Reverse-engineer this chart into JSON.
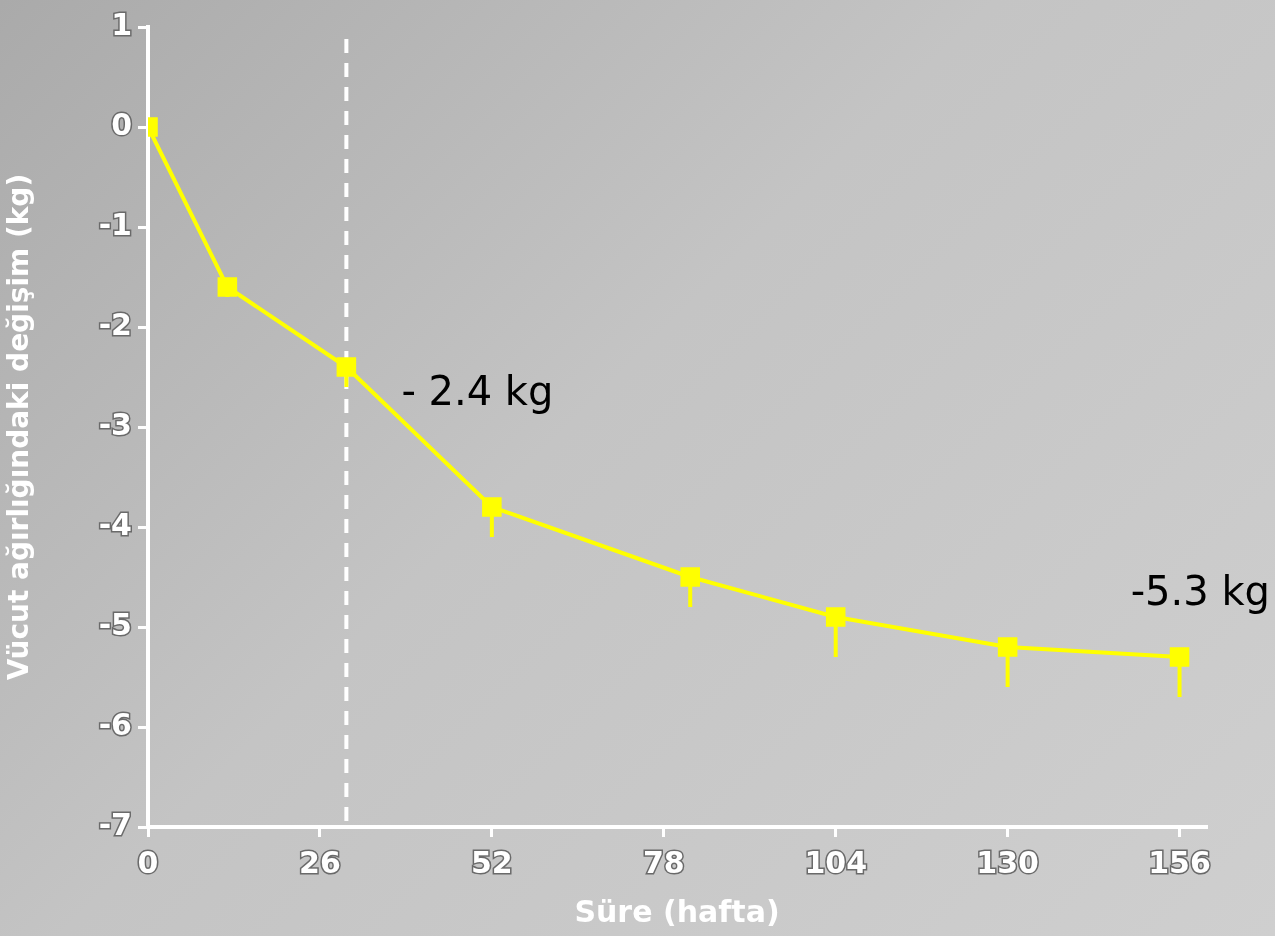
{
  "chart_data": {
    "type": "line",
    "xlabel": "Süre (hafta)",
    "ylabel": "Vücut ağırlığındaki değişim (kg)",
    "x": [
      0,
      12,
      30,
      52,
      82,
      104,
      130,
      156
    ],
    "series": [
      {
        "color": "#ffff00",
        "values": [
          0,
          -1.6,
          -2.4,
          -3.8,
          -4.5,
          -4.9,
          -5.2,
          -5.3
        ],
        "errors": [
          null,
          [
            -1.7,
            -1.6
          ],
          [
            -2.6,
            -2.4
          ],
          [
            -4.1,
            -3.8
          ],
          [
            -4.8,
            -4.5
          ],
          [
            -5.3,
            -4.9
          ],
          [
            -5.6,
            -5.2
          ],
          [
            -5.7,
            -5.3
          ]
        ]
      }
    ],
    "xlim": [
      0,
      160
    ],
    "xticks": [
      0,
      26,
      52,
      78,
      104,
      130,
      156
    ],
    "ylim": [
      -7,
      1
    ],
    "yticks": [
      -7,
      -6,
      -5,
      -4,
      -3,
      -2,
      -1,
      0,
      1
    ],
    "ref_lines": [
      {
        "axis": "x",
        "value": 30,
        "color": "#ffffff",
        "line_style": "dashed"
      }
    ],
    "annotations": [
      {
        "text": "- 2.4 kg",
        "x": 30,
        "y": -2.4
      },
      {
        "text": "-5.3 kg",
        "x": 156,
        "y": -5.3
      }
    ],
    "marker": "square",
    "line_style": "solid"
  }
}
